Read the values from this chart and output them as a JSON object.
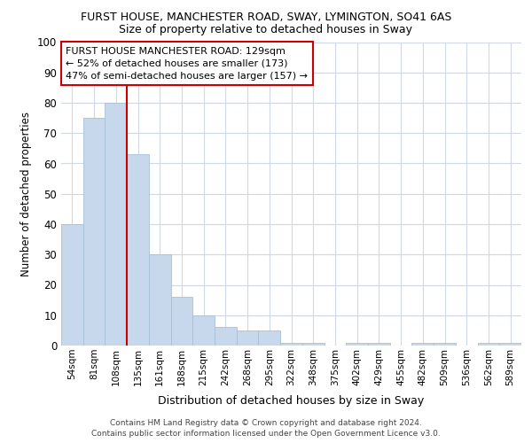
{
  "title1": "FURST HOUSE, MANCHESTER ROAD, SWAY, LYMINGTON, SO41 6AS",
  "title2": "Size of property relative to detached houses in Sway",
  "xlabel": "Distribution of detached houses by size in Sway",
  "ylabel": "Number of detached properties",
  "categories": [
    "54sqm",
    "81sqm",
    "108sqm",
    "135sqm",
    "161sqm",
    "188sqm",
    "215sqm",
    "242sqm",
    "268sqm",
    "295sqm",
    "322sqm",
    "348sqm",
    "375sqm",
    "402sqm",
    "429sqm",
    "455sqm",
    "482sqm",
    "509sqm",
    "536sqm",
    "562sqm",
    "589sqm"
  ],
  "values": [
    40,
    75,
    80,
    63,
    30,
    16,
    10,
    6,
    5,
    5,
    1,
    1,
    0,
    1,
    1,
    0,
    1,
    1,
    0,
    1,
    1
  ],
  "bar_color": "#c8d8ec",
  "bar_edge_color": "#a8c0d8",
  "vline_x": 2.5,
  "vline_color": "#cc0000",
  "annotation_text": "FURST HOUSE MANCHESTER ROAD: 129sqm\n← 52% of detached houses are smaller (173)\n47% of semi-detached houses are larger (157) →",
  "annotation_box_facecolor": "#ffffff",
  "annotation_box_edgecolor": "#cc0000",
  "ylim": [
    0,
    100
  ],
  "yticks": [
    0,
    10,
    20,
    30,
    40,
    50,
    60,
    70,
    80,
    90,
    100
  ],
  "footer1": "Contains HM Land Registry data © Crown copyright and database right 2024.",
  "footer2": "Contains public sector information licensed under the Open Government Licence v3.0.",
  "background_color": "#ffffff",
  "plot_bg_color": "#ffffff",
  "grid_color": "#d0d8e8"
}
